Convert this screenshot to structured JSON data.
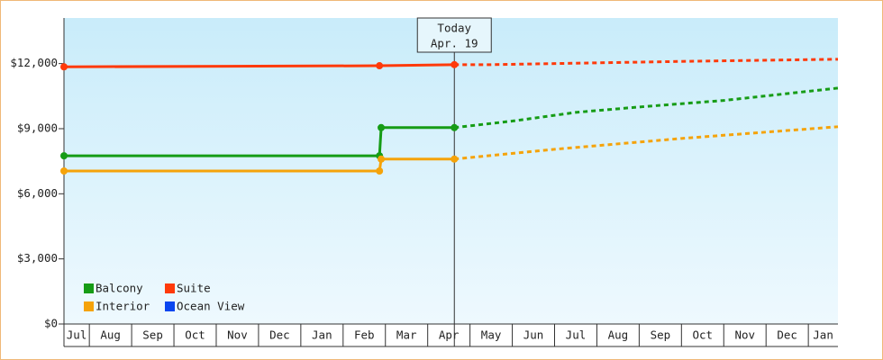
{
  "chart_data": {
    "type": "line",
    "ylim": [
      0,
      14100
    ],
    "yticks": [
      {
        "value": 0,
        "label": "$0"
      },
      {
        "value": 3000,
        "label": "$3,000"
      },
      {
        "value": 6000,
        "label": "$6,000"
      },
      {
        "value": 9000,
        "label": "$9,000"
      },
      {
        "value": 12000,
        "label": "$12,000"
      }
    ],
    "xlim": [
      -0.6,
      17.7
    ],
    "xticks": [
      {
        "value": -1,
        "label": "Jul"
      },
      {
        "value": 0,
        "label": "Aug"
      },
      {
        "value": 1,
        "label": "Sep"
      },
      {
        "value": 2,
        "label": "Oct"
      },
      {
        "value": 3,
        "label": "Nov"
      },
      {
        "value": 4,
        "label": "Dec"
      },
      {
        "value": 5,
        "label": "Jan"
      },
      {
        "value": 6,
        "label": "Feb"
      },
      {
        "value": 7,
        "label": "Mar"
      },
      {
        "value": 8,
        "label": "Apr"
      },
      {
        "value": 9,
        "label": "May"
      },
      {
        "value": 10,
        "label": "Jun"
      },
      {
        "value": 11,
        "label": "Jul"
      },
      {
        "value": 12,
        "label": "Aug"
      },
      {
        "value": 13,
        "label": "Sep"
      },
      {
        "value": 14,
        "label": "Oct"
      },
      {
        "value": 15,
        "label": "Nov"
      },
      {
        "value": 16,
        "label": "Dec"
      },
      {
        "value": 17,
        "label": "Jan"
      }
    ],
    "today": {
      "x": 8.63,
      "label": "Today",
      "date": "Apr. 19"
    },
    "series": [
      {
        "name": "Balcony",
        "color": "#169c16",
        "x": [
          -0.6,
          6.86,
          6.9,
          8.63
        ],
        "values": [
          7750,
          7750,
          9050,
          9050
        ],
        "forecast_x": [
          8.63,
          10.0,
          11.5,
          13.0,
          15.0,
          17.7
        ],
        "forecast_values": [
          9050,
          9350,
          9750,
          10000,
          10300,
          10870
        ]
      },
      {
        "name": "Suite",
        "color": "#ff3a0a",
        "x": [
          -0.6,
          6.86,
          8.63
        ],
        "values": [
          11850,
          11900,
          11950
        ],
        "forecast_x": [
          8.63,
          9.5,
          11.0,
          14.0,
          17.7
        ],
        "forecast_values": [
          11950,
          11950,
          12000,
          12100,
          12200
        ]
      },
      {
        "name": "Interior",
        "color": "#f5a30a",
        "x": [
          -0.6,
          6.86,
          6.9,
          8.63
        ],
        "values": [
          7050,
          7050,
          7600,
          7600
        ],
        "forecast_x": [
          8.63,
          11.0,
          14.0,
          17.7
        ],
        "forecast_values": [
          7600,
          8050,
          8550,
          9090
        ]
      },
      {
        "name": "Ocean View",
        "color": "#0a46f0",
        "x": [],
        "values": [],
        "forecast_x": [],
        "forecast_values": []
      }
    ]
  }
}
